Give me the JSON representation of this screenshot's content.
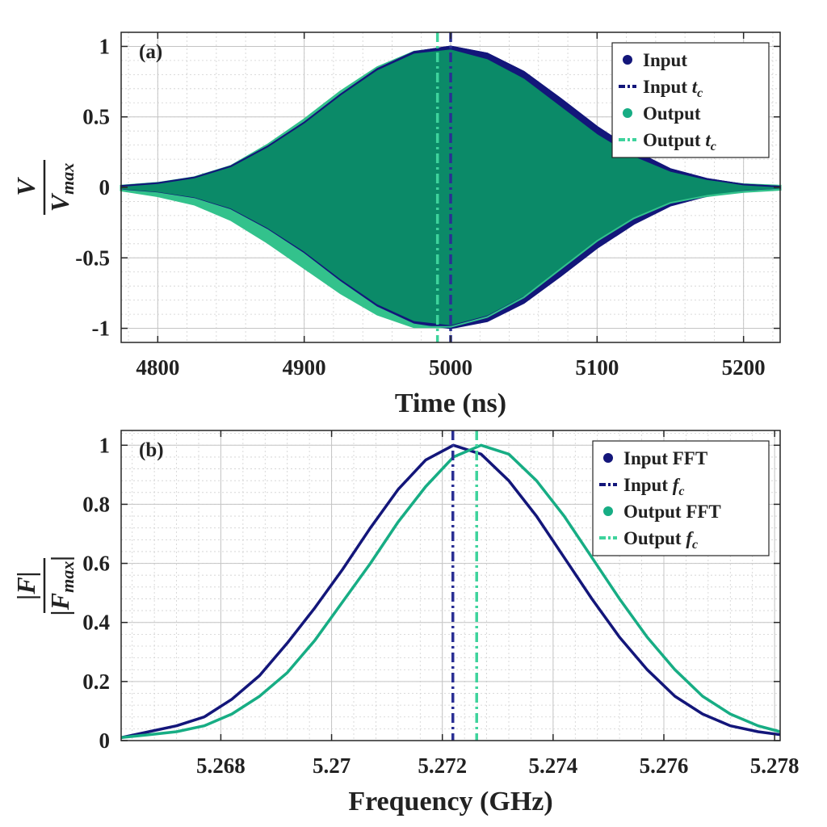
{
  "colors": {
    "input": "#13167a",
    "output_a": "#0b8a68",
    "output_a_light": "#33c28c",
    "output_b": "#17ad84",
    "input_tc_line": "#2a2f94",
    "output_tc_line": "#3ed39c",
    "grid": "#d0d0d0"
  },
  "chart_data": [
    {
      "type": "area",
      "panel_label": "(a)",
      "xlabel": "Time (ns)",
      "ylabel": {
        "num": "V",
        "den": "V",
        "den_sub": "max"
      },
      "xlim": [
        4775,
        5225
      ],
      "ylim": [
        -1.1,
        1.1
      ],
      "xticks": [
        4800,
        4900,
        5000,
        5100,
        5200
      ],
      "xtick_labels": [
        "4800",
        "4900",
        "5000",
        "5100",
        "5200"
      ],
      "yticks": [
        1,
        0.5,
        0,
        -0.5,
        -1
      ],
      "ytick_labels": [
        "1",
        "0.5",
        "0",
        "-0.5",
        "-1"
      ],
      "grid": true,
      "legend_placement": "top-right",
      "series": [
        {
          "name": "Input",
          "kind": "oscillating signal envelope",
          "x": [
            4775,
            4800,
            4825,
            4850,
            4875,
            4900,
            4925,
            4950,
            4975,
            5000,
            5025,
            5050,
            5075,
            5100,
            5125,
            5150,
            5175,
            5200,
            5225
          ],
          "upper": [
            0.01,
            0.03,
            0.07,
            0.15,
            0.29,
            0.46,
            0.66,
            0.84,
            0.96,
            1.0,
            0.95,
            0.82,
            0.63,
            0.43,
            0.26,
            0.13,
            0.06,
            0.02,
            0.005
          ],
          "lower": [
            -0.01,
            -0.03,
            -0.07,
            -0.15,
            -0.29,
            -0.46,
            -0.66,
            -0.84,
            -0.96,
            -1.0,
            -0.95,
            -0.82,
            -0.63,
            -0.43,
            -0.26,
            -0.13,
            -0.06,
            -0.02,
            -0.005
          ]
        },
        {
          "name": "Output",
          "kind": "oscillating signal envelope",
          "x": [
            4775,
            4800,
            4825,
            4850,
            4875,
            4900,
            4925,
            4950,
            4975,
            5000,
            5025,
            5050,
            5075,
            5100,
            5125,
            5150,
            5175,
            5200,
            5225
          ],
          "upper": [
            0.01,
            0.03,
            0.07,
            0.15,
            0.3,
            0.48,
            0.68,
            0.85,
            0.96,
            0.99,
            0.92,
            0.78,
            0.58,
            0.38,
            0.22,
            0.11,
            0.05,
            0.02,
            0.01
          ],
          "lower": [
            -0.02,
            -0.06,
            -0.12,
            -0.23,
            -0.39,
            -0.57,
            -0.75,
            -0.9,
            -0.99,
            -0.99,
            -0.92,
            -0.78,
            -0.58,
            -0.38,
            -0.22,
            -0.11,
            -0.06,
            -0.03,
            -0.015
          ]
        }
      ],
      "vlines": [
        {
          "name": "Input t_c",
          "x": 5000
        },
        {
          "name": "Output t_c",
          "x": 4991
        }
      ],
      "legend": [
        {
          "marker": "dot",
          "color_key": "input",
          "label": "Input",
          "sub": ""
        },
        {
          "marker": "dash",
          "color_key": "input",
          "label": "Input ",
          "italic": "t",
          "sub": "c"
        },
        {
          "marker": "dot",
          "color_key": "output_b",
          "label": "Output",
          "sub": ""
        },
        {
          "marker": "dash",
          "color_key": "output_tc_line",
          "label": "Output ",
          "italic": "t",
          "sub": "c"
        }
      ]
    },
    {
      "type": "line",
      "panel_label": "(b)",
      "xlabel": "Frequency (GHz)",
      "ylabel": {
        "num": "|F|",
        "den": "|F",
        "den_sub": "max",
        "den_close": "|"
      },
      "xlim": [
        5.2662,
        5.2781
      ],
      "ylim": [
        0,
        1.05
      ],
      "xticks": [
        5.268,
        5.27,
        5.272,
        5.274,
        5.276,
        5.278
      ],
      "xtick_labels": [
        "5.268",
        "5.27",
        "5.272",
        "5.274",
        "5.276",
        "5.278"
      ],
      "yticks": [
        1,
        0.8,
        0.6,
        0.4,
        0.2,
        0
      ],
      "ytick_labels": [
        "1",
        "0.8",
        "0.6",
        "0.4",
        "0.2",
        "0"
      ],
      "grid": true,
      "legend_placement": "top-right",
      "series": [
        {
          "name": "Input FFT",
          "x": [
            5.2662,
            5.2667,
            5.2672,
            5.2677,
            5.2682,
            5.2687,
            5.2692,
            5.2697,
            5.2702,
            5.2707,
            5.2712,
            5.2717,
            5.2722,
            5.2727,
            5.2732,
            5.2737,
            5.2742,
            5.2747,
            5.2752,
            5.2757,
            5.2762,
            5.2767,
            5.2772,
            5.2777,
            5.2781
          ],
          "y": [
            0.01,
            0.03,
            0.05,
            0.08,
            0.14,
            0.22,
            0.33,
            0.45,
            0.58,
            0.72,
            0.85,
            0.95,
            1.0,
            0.97,
            0.88,
            0.76,
            0.62,
            0.48,
            0.35,
            0.24,
            0.15,
            0.09,
            0.05,
            0.03,
            0.02
          ]
        },
        {
          "name": "Output FFT",
          "x": [
            5.2662,
            5.2667,
            5.2672,
            5.2677,
            5.2682,
            5.2687,
            5.2692,
            5.2697,
            5.2702,
            5.2707,
            5.2712,
            5.2717,
            5.2722,
            5.2727,
            5.2732,
            5.2737,
            5.2742,
            5.2747,
            5.2752,
            5.2757,
            5.2762,
            5.2767,
            5.2772,
            5.2777,
            5.2781
          ],
          "y": [
            0.01,
            0.02,
            0.03,
            0.05,
            0.09,
            0.15,
            0.23,
            0.34,
            0.47,
            0.6,
            0.74,
            0.86,
            0.96,
            1.0,
            0.97,
            0.88,
            0.76,
            0.62,
            0.48,
            0.35,
            0.24,
            0.15,
            0.09,
            0.05,
            0.03
          ]
        }
      ],
      "vlines": [
        {
          "name": "Input f_c",
          "x": 5.27219
        },
        {
          "name": "Output f_c",
          "x": 5.27262
        }
      ],
      "legend": [
        {
          "marker": "dot",
          "color_key": "input",
          "label": "Input FFT",
          "sub": ""
        },
        {
          "marker": "dash",
          "color_key": "input",
          "label": "Input ",
          "italic": "f",
          "sub": "c"
        },
        {
          "marker": "dot",
          "color_key": "output_b",
          "label": "Output FFT",
          "sub": ""
        },
        {
          "marker": "dash",
          "color_key": "output_tc_line",
          "label": "Output ",
          "italic": "f",
          "sub": "c"
        }
      ]
    }
  ]
}
